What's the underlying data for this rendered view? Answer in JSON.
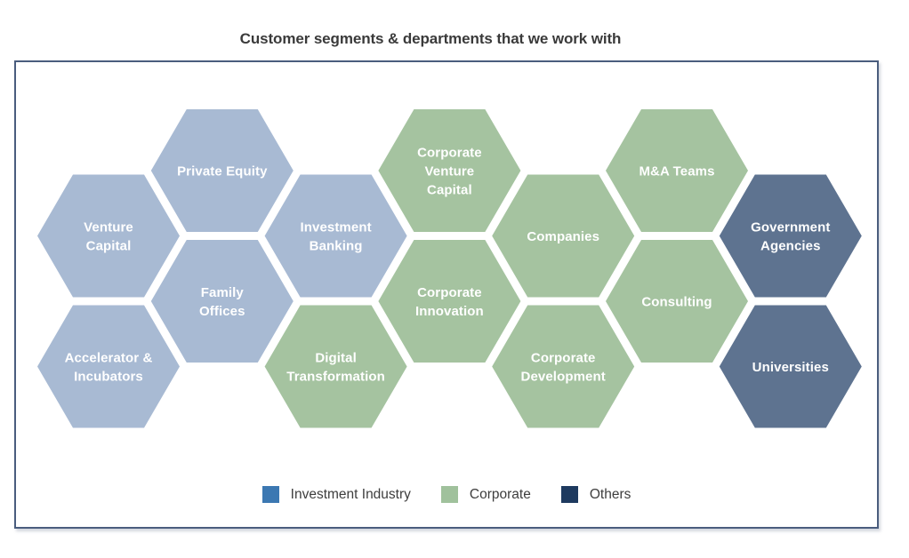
{
  "title": "Customer segments & departments that we work with",
  "categories": {
    "investment": {
      "name": "Investment Industry",
      "hex_color": "#a8bad3"
    },
    "corporate": {
      "name": "Corporate",
      "hex_color": "#a5c3a0"
    },
    "others": {
      "name": "Others",
      "hex_color": "#5e7390"
    }
  },
  "hexagons": [
    {
      "id": "venture-capital",
      "label": "Venture Capital",
      "lines": [
        "Venture",
        "Capital"
      ],
      "category": "investment",
      "col": 0,
      "row": 1
    },
    {
      "id": "accelerator-incubators",
      "label": "Accelerator & Incubators",
      "lines": [
        "Accelerator &",
        "Incubators"
      ],
      "category": "investment",
      "col": 0,
      "row": 3
    },
    {
      "id": "private-equity",
      "label": "Private Equity",
      "lines": [
        "Private Equity"
      ],
      "category": "investment",
      "col": 1,
      "row": 0
    },
    {
      "id": "family-offices",
      "label": "Family Offices",
      "lines": [
        "Family",
        "Offices"
      ],
      "category": "investment",
      "col": 1,
      "row": 2
    },
    {
      "id": "investment-banking",
      "label": "Investment Banking",
      "lines": [
        "Investment",
        "Banking"
      ],
      "category": "investment",
      "col": 2,
      "row": 1
    },
    {
      "id": "digital-transformation",
      "label": "Digital Transformation",
      "lines": [
        "Digital",
        "Transformation"
      ],
      "category": "corporate",
      "col": 2,
      "row": 3
    },
    {
      "id": "corporate-venture-capital",
      "label": "Corporate Venture Capital",
      "lines": [
        "Corporate",
        "Venture",
        "Capital"
      ],
      "category": "corporate",
      "col": 3,
      "row": 0
    },
    {
      "id": "corporate-innovation",
      "label": "Corporate Innovation",
      "lines": [
        "Corporate",
        "Innovation"
      ],
      "category": "corporate",
      "col": 3,
      "row": 2
    },
    {
      "id": "companies",
      "label": "Companies",
      "lines": [
        "Companies"
      ],
      "category": "corporate",
      "col": 4,
      "row": 1
    },
    {
      "id": "corporate-development",
      "label": "Corporate Development",
      "lines": [
        "Corporate",
        "Development"
      ],
      "category": "corporate",
      "col": 4,
      "row": 3
    },
    {
      "id": "ma-teams",
      "label": "M&A Teams",
      "lines": [
        "M&A Teams"
      ],
      "category": "corporate",
      "col": 5,
      "row": 0
    },
    {
      "id": "consulting",
      "label": "Consulting",
      "lines": [
        "Consulting"
      ],
      "category": "corporate",
      "col": 5,
      "row": 2
    },
    {
      "id": "government-agencies",
      "label": "Government Agencies",
      "lines": [
        "Government",
        "Agencies"
      ],
      "category": "others",
      "col": 6,
      "row": 1
    },
    {
      "id": "universities",
      "label": "Universities",
      "lines": [
        "Universities"
      ],
      "category": "others",
      "col": 6,
      "row": 3
    }
  ],
  "legend": [
    {
      "id": "investment-industry",
      "label": "Investment Industry",
      "color": "#3c78b2"
    },
    {
      "id": "corporate",
      "label": "Corporate",
      "color": "#a0c19c"
    },
    {
      "id": "others",
      "label": "Others",
      "color": "#1e3a5f"
    }
  ]
}
